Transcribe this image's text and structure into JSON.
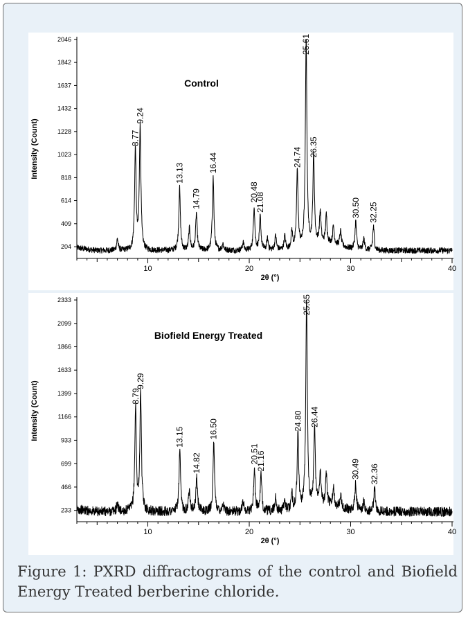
{
  "chart_data": [
    {
      "type": "line",
      "title": "Control",
      "xlabel": "2θ (°)",
      "ylabel": "Intensity (Count)",
      "xlim": [
        3,
        40
      ],
      "ylim": [
        100,
        2046
      ],
      "xticks": [
        10,
        20,
        30,
        40
      ],
      "yticks": [
        204,
        409,
        614,
        818,
        1023,
        1228,
        1432,
        1637,
        1842,
        2046
      ],
      "baseline": 170,
      "series": [
        {
          "peaks": [
            {
              "x": 7.0,
              "y": 270,
              "label": ""
            },
            {
              "x": 8.77,
              "y": 1060,
              "label": "8.77"
            },
            {
              "x": 9.24,
              "y": 1260,
              "label": "9.24"
            },
            {
              "x": 13.13,
              "y": 730,
              "label": "13.13"
            },
            {
              "x": 14.1,
              "y": 360,
              "label": ""
            },
            {
              "x": 14.79,
              "y": 500,
              "label": "14.79"
            },
            {
              "x": 16.44,
              "y": 820,
              "label": "16.44"
            },
            {
              "x": 17.4,
              "y": 230,
              "label": ""
            },
            {
              "x": 19.4,
              "y": 240,
              "label": ""
            },
            {
              "x": 20.48,
              "y": 560,
              "label": "20.48"
            },
            {
              "x": 21.08,
              "y": 470,
              "label": "21.08"
            },
            {
              "x": 21.8,
              "y": 270,
              "label": ""
            },
            {
              "x": 22.6,
              "y": 300,
              "label": ""
            },
            {
              "x": 23.5,
              "y": 290,
              "label": ""
            },
            {
              "x": 24.2,
              "y": 330,
              "label": ""
            },
            {
              "x": 24.74,
              "y": 870,
              "label": "24.74"
            },
            {
              "x": 25.61,
              "y": 2046,
              "label": "25.61"
            },
            {
              "x": 26.35,
              "y": 960,
              "label": "26.35"
            },
            {
              "x": 27.0,
              "y": 450,
              "label": ""
            },
            {
              "x": 27.6,
              "y": 420,
              "label": ""
            },
            {
              "x": 28.3,
              "y": 330,
              "label": ""
            },
            {
              "x": 29.0,
              "y": 300,
              "label": ""
            },
            {
              "x": 30.5,
              "y": 420,
              "label": "30.50"
            },
            {
              "x": 31.3,
              "y": 270,
              "label": ""
            },
            {
              "x": 32.25,
              "y": 380,
              "label": "32.25"
            }
          ]
        }
      ]
    },
    {
      "type": "line",
      "title": "Biofield Energy Treated",
      "xlabel": "2θ (°)",
      "ylabel": "Intensity (Count)",
      "xlim": [
        3,
        40
      ],
      "ylim": [
        120,
        2333
      ],
      "xticks": [
        10,
        20,
        30,
        40
      ],
      "yticks": [
        233,
        466,
        699,
        933,
        1166,
        1399,
        1633,
        1866,
        2099,
        2333
      ],
      "baseline": 220,
      "series": [
        {
          "peaks": [
            {
              "x": 7.0,
              "y": 300,
              "label": ""
            },
            {
              "x": 8.79,
              "y": 1250,
              "label": "8.79"
            },
            {
              "x": 9.29,
              "y": 1400,
              "label": "9.29"
            },
            {
              "x": 13.15,
              "y": 820,
              "label": "13.15"
            },
            {
              "x": 14.1,
              "y": 450,
              "label": ""
            },
            {
              "x": 14.82,
              "y": 560,
              "label": "14.82"
            },
            {
              "x": 16.5,
              "y": 900,
              "label": "16.50"
            },
            {
              "x": 17.4,
              "y": 300,
              "label": ""
            },
            {
              "x": 19.4,
              "y": 320,
              "label": ""
            },
            {
              "x": 20.51,
              "y": 650,
              "label": "20.51"
            },
            {
              "x": 21.16,
              "y": 580,
              "label": "21.16"
            },
            {
              "x": 22.6,
              "y": 360,
              "label": ""
            },
            {
              "x": 23.5,
              "y": 340,
              "label": ""
            },
            {
              "x": 24.2,
              "y": 380,
              "label": ""
            },
            {
              "x": 24.8,
              "y": 980,
              "label": "24.80"
            },
            {
              "x": 25.65,
              "y": 2333,
              "label": "25.65"
            },
            {
              "x": 26.44,
              "y": 1020,
              "label": "26.44"
            },
            {
              "x": 27.0,
              "y": 560,
              "label": ""
            },
            {
              "x": 27.6,
              "y": 520,
              "label": ""
            },
            {
              "x": 28.3,
              "y": 400,
              "label": ""
            },
            {
              "x": 29.0,
              "y": 360,
              "label": ""
            },
            {
              "x": 30.49,
              "y": 500,
              "label": "30.49"
            },
            {
              "x": 31.3,
              "y": 320,
              "label": ""
            },
            {
              "x": 32.36,
              "y": 450,
              "label": "32.36"
            }
          ]
        }
      ]
    }
  ],
  "caption": {
    "prefix": "Figure 1: PXRD diffractograms of the control and Biofield Energy Treated berberine chloride",
    "suffix": "."
  }
}
